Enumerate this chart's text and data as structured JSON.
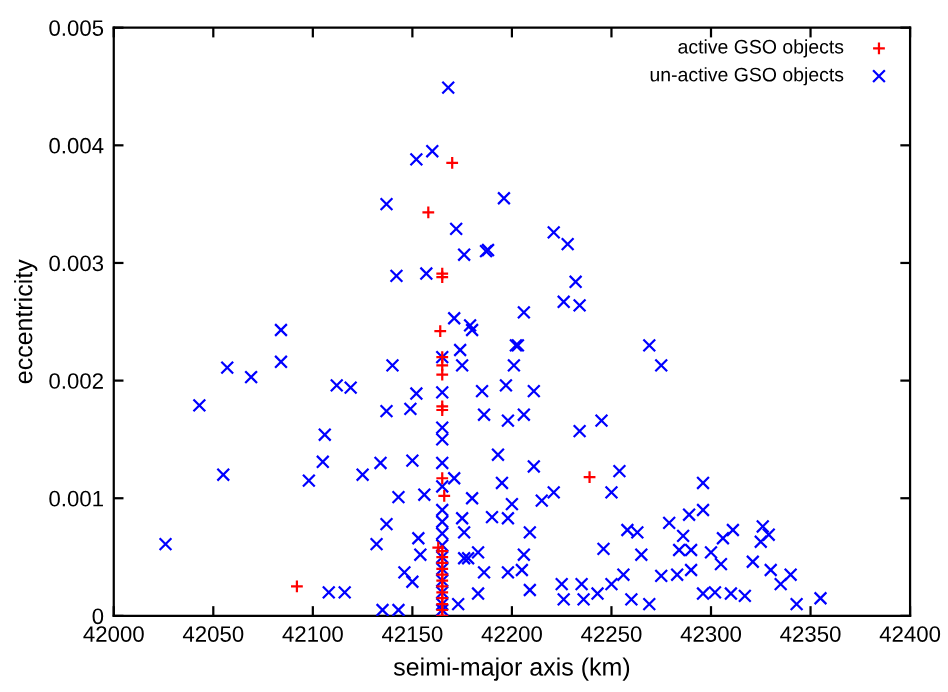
{
  "chart_data": {
    "type": "scatter",
    "xlabel": "seimi-major axis (km)",
    "ylabel": "eccentricity",
    "xlim": [
      42000,
      42400
    ],
    "xticks": [
      42000,
      42050,
      42100,
      42150,
      42200,
      42250,
      42300,
      42350,
      42400
    ],
    "ylim": [
      0,
      0.005
    ],
    "yticks": [
      0,
      0.001,
      0.002,
      0.003,
      0.004,
      0.005
    ],
    "grid": false,
    "legend": "top right",
    "series": [
      {
        "name": "active GSO objects",
        "color": "#ff0000",
        "marker": "plus",
        "x": [
          42158,
          42165,
          42170,
          42164,
          42092,
          42239,
          42165,
          42165,
          42165,
          42165,
          42165,
          42165,
          42165,
          42165,
          42165,
          42165,
          42165,
          42165,
          42163,
          42166,
          42165,
          42165,
          42165,
          42165,
          42165,
          42165,
          42165
        ],
        "values": [
          0.00343,
          0.00291,
          0.00385,
          0.00242,
          0.00025,
          0.00118,
          0.0,
          5e-05,
          0.0001,
          0.00015,
          0.0002,
          0.00025,
          0.0003,
          0.00035,
          0.0004,
          0.00045,
          0.0005,
          0.00055,
          0.00058,
          0.00102,
          0.00117,
          0.00175,
          0.00178,
          0.00205,
          0.00213,
          0.0022,
          0.00288
        ]
      },
      {
        "name": "un-active GSO objects",
        "color": "#0000ff",
        "marker": "cross",
        "x": [
          42168,
          42160,
          42152,
          42137,
          42172,
          42176,
          42188,
          42142,
          42157,
          42171,
          42196,
          42221,
          42228,
          42187,
          42232,
          42226,
          42234,
          42206,
          42179,
          42180,
          42202,
          42269,
          42174,
          42084,
          42084,
          42057,
          42069,
          42043,
          42112,
          42119,
          42140,
          42152,
          42149,
          42137,
          42106,
          42105,
          42098,
          42125,
          42134,
          42150,
          42055,
          42143,
          42026,
          42132,
          42137,
          42108,
          42116,
          42135,
          42143,
          42156,
          42154,
          42146,
          42171,
          42175,
          42180,
          42183,
          42186,
          42173,
          42175,
          42203,
          42201,
          42275,
          42185,
          42197,
          42211,
          42186,
          42198,
          42206,
          42234,
          42245,
          42193,
          42211,
          42195,
          42254,
          42250,
          42296,
          42221,
          42215,
          42200,
          42190,
          42198,
          42258,
          42263,
          42279,
          42289,
          42296,
          42286,
          42306,
          42311,
          42326,
          42329,
          42325,
          42246,
          42265,
          42284,
          42290,
          42300,
          42209,
          42206,
          42176,
          42305,
          42321,
          42330,
          42340,
          42335,
          42283,
          42290,
          42275,
          42256,
          42250,
          42225,
          42235,
          42226,
          42236,
          42243,
          42260,
          42269,
          42296,
          42302,
          42310,
          42317,
          42343,
          42355,
          42209,
          42205,
          42198,
          42183,
          42178,
          42176,
          42153,
          42150,
          42165,
          42165,
          42165,
          42165,
          42165,
          42165,
          42165,
          42165,
          42165,
          42165,
          42165,
          42165,
          42165,
          42165,
          42165,
          42165
        ],
        "values": [
          0.00449,
          0.00395,
          0.00388,
          0.0035,
          0.00329,
          0.00307,
          0.00311,
          0.00289,
          0.00291,
          0.00253,
          0.00355,
          0.00326,
          0.00316,
          0.0031,
          0.00284,
          0.00267,
          0.00264,
          0.00258,
          0.00247,
          0.00243,
          0.0023,
          0.0023,
          0.00226,
          0.00243,
          0.00216,
          0.00211,
          0.00203,
          0.00179,
          0.00196,
          0.00194,
          0.00213,
          0.00189,
          0.00176,
          0.00174,
          0.00154,
          0.00131,
          0.00115,
          0.0012,
          0.0013,
          0.00132,
          0.0012,
          0.00101,
          0.00061,
          0.00061,
          0.00078,
          0.0002,
          0.0002,
          5e-05,
          5e-05,
          0.00103,
          0.00052,
          0.00037,
          0.00117,
          0.00083,
          0.001,
          0.00054,
          0.00037,
          0.0001,
          0.00213,
          0.0023,
          0.00213,
          0.00213,
          0.00191,
          0.00196,
          0.00191,
          0.00171,
          0.00166,
          0.00171,
          0.00157,
          0.00166,
          0.00137,
          0.00127,
          0.00113,
          0.00123,
          0.00105,
          0.00113,
          0.00105,
          0.00098,
          0.00095,
          0.00084,
          0.00083,
          0.00073,
          0.00071,
          0.00079,
          0.00086,
          0.0009,
          0.00068,
          0.00066,
          0.00073,
          0.00076,
          0.00069,
          0.00063,
          0.00057,
          0.00052,
          0.00056,
          0.00056,
          0.00054,
          0.00071,
          0.00052,
          0.00049,
          0.00044,
          0.00046,
          0.00039,
          0.00035,
          0.00027,
          0.00035,
          0.00039,
          0.00034,
          0.00035,
          0.00027,
          0.00027,
          0.00027,
          0.00014,
          0.00014,
          0.00019,
          0.00014,
          0.0001,
          0.00019,
          0.0002,
          0.00019,
          0.00017,
          0.0001,
          0.00015,
          0.00022,
          0.00039,
          0.00037,
          0.00019,
          0.00049,
          0.00071,
          0.00066,
          0.00029,
          5e-05,
          0.0001,
          0.0002,
          0.0003,
          0.0004,
          0.0005,
          0.0006,
          0.0007,
          0.0008,
          0.0009,
          0.0011,
          0.0013,
          0.0015,
          0.0016,
          0.0019,
          0.0022
        ]
      }
    ]
  }
}
